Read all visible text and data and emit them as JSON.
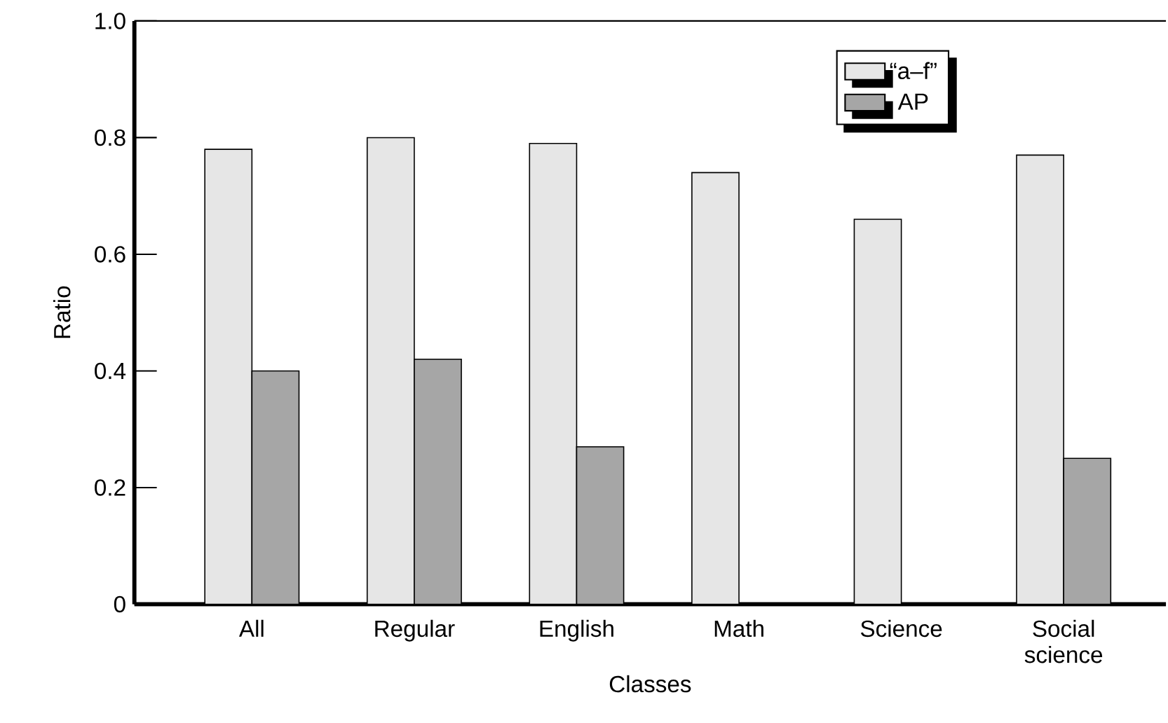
{
  "chart_data": {
    "type": "bar",
    "xlabel": "Classes",
    "ylabel": "Ratio",
    "categories": [
      "All",
      "Regular",
      "English",
      "Math",
      "Science",
      "Social science"
    ],
    "series": [
      {
        "name": "“a–f”",
        "color": "#e6e6e6",
        "values": [
          0.78,
          0.8,
          0.79,
          0.74,
          0.66,
          0.77
        ]
      },
      {
        "name": "AP",
        "color": "#a6a6a6",
        "values": [
          0.4,
          0.42,
          0.27,
          null,
          null,
          0.25
        ]
      }
    ],
    "ylim": [
      0,
      1
    ],
    "yticks": [
      0,
      0.2,
      0.4,
      0.6,
      0.8,
      {
        "value": 1,
        "label": "1.0"
      }
    ],
    "grid": false,
    "legend": "top right"
  }
}
